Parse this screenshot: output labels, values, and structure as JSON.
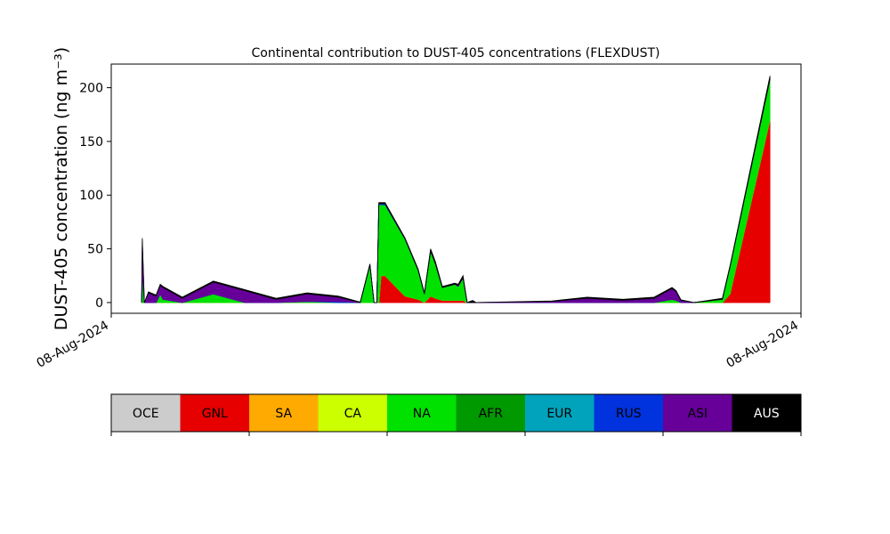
{
  "chart_data": {
    "type": "stacked_area",
    "title": "Continental contribution to DUST-405 concentrations (FLEXDUST)",
    "ylabel": "DUST-405 concentration (ng m⁻³)",
    "x": [
      4.4,
      4.5,
      4.8,
      5.4,
      6.5,
      7.1,
      7.5,
      10.3,
      14.8,
      19.4,
      23.9,
      28.4,
      32.9,
      36.1,
      37.5,
      38.1,
      38.5,
      38.8,
      39.1,
      39.7,
      42.6,
      44.5,
      45.4,
      46.3,
      47.0,
      48.0,
      49.8,
      50.3,
      51.0,
      51.6,
      52.4,
      52.9,
      63.9,
      69.0,
      74.2,
      78.7,
      81.3,
      81.9,
      82.6,
      84.5,
      88.6,
      89.7,
      95.5
    ],
    "xlim": [
      0,
      100
    ],
    "xticks": [
      {
        "value": 0,
        "label": "08-Aug-2024"
      },
      {
        "value": 100,
        "label": "08-Aug-2024"
      }
    ],
    "ylim": [
      -10,
      222
    ],
    "yticks": [
      0,
      50,
      100,
      150,
      200
    ],
    "grid": false,
    "series": [
      {
        "name": "OCE",
        "color": "#cccccc",
        "values": [
          0,
          0,
          0,
          0,
          0,
          0,
          0,
          0,
          0,
          0,
          0,
          0,
          0,
          0,
          0,
          0,
          0,
          0,
          0,
          0,
          0,
          0,
          0,
          0,
          0,
          0,
          0,
          0,
          0,
          0,
          0,
          0,
          0,
          0,
          0,
          0,
          0,
          0,
          0,
          0,
          0,
          0,
          0
        ]
      },
      {
        "name": "GNL",
        "color": "#e60000",
        "values": [
          0,
          0,
          0,
          0,
          0,
          0,
          0,
          0,
          0,
          0,
          0,
          0,
          0,
          0,
          0,
          0,
          0,
          0,
          25,
          25,
          6,
          3,
          0,
          6,
          4,
          2,
          2,
          2,
          2,
          0,
          0,
          0,
          0,
          0,
          0,
          0,
          0,
          0,
          0,
          0,
          0,
          8,
          170
        ]
      },
      {
        "name": "SA",
        "color": "#ffaa00",
        "values": [
          0,
          0,
          0,
          0,
          0,
          0,
          0,
          0,
          0,
          0,
          0,
          0,
          0,
          0,
          0,
          0,
          0,
          0,
          0,
          0,
          0,
          0,
          0,
          0,
          0,
          0,
          0,
          0,
          0,
          0,
          0,
          0,
          0,
          0,
          0,
          0,
          0,
          0,
          0,
          0,
          0,
          0,
          0
        ]
      },
      {
        "name": "CA",
        "color": "#ccff00",
        "values": [
          0,
          0,
          0,
          0,
          0,
          0,
          0,
          0,
          0,
          0,
          0,
          0,
          0,
          0,
          0,
          0,
          0,
          0,
          0,
          0,
          0,
          0,
          0,
          0,
          0,
          0,
          0,
          0,
          0,
          0,
          0,
          0,
          0,
          0,
          0,
          0,
          0,
          0,
          0,
          0,
          0,
          0,
          0
        ]
      },
      {
        "name": "NA",
        "color": "#00e100",
        "values": [
          0,
          30,
          0,
          0,
          0,
          8,
          3,
          0,
          8,
          0,
          0,
          1,
          0,
          0,
          35,
          0,
          0,
          92,
          66,
          66,
          53,
          27,
          8,
          42,
          32,
          12,
          15,
          13,
          21,
          0,
          0,
          0,
          0,
          0,
          0,
          0,
          3,
          2,
          0,
          0,
          3,
          25,
          38
        ]
      },
      {
        "name": "AFR",
        "color": "#009900",
        "values": [
          0,
          0,
          0,
          0,
          0,
          0,
          0,
          0,
          0,
          0,
          0,
          0,
          0,
          0,
          0,
          0,
          0,
          0,
          0,
          0,
          0,
          0,
          0,
          0,
          0,
          0,
          0,
          0,
          0,
          0,
          0,
          0,
          0,
          0,
          0,
          0,
          0,
          0,
          0,
          0,
          0,
          0,
          0
        ]
      },
      {
        "name": "EUR",
        "color": "#00a3bb",
        "values": [
          0,
          0,
          0,
          0,
          0,
          0,
          0,
          0,
          0,
          0,
          0,
          0,
          0,
          0,
          0,
          0,
          0,
          0,
          0,
          0,
          0,
          0,
          0,
          0,
          0,
          0,
          0,
          0,
          0,
          0,
          0,
          0,
          0,
          0,
          0,
          0,
          0,
          0,
          0,
          0,
          0,
          0,
          0
        ]
      },
      {
        "name": "RUS",
        "color": "#0033dd",
        "values": [
          0,
          0,
          0,
          0,
          0,
          0,
          0,
          0,
          0,
          0,
          0,
          0,
          1,
          0,
          0,
          0,
          0,
          0,
          1,
          1,
          0,
          0,
          0,
          0,
          0,
          0,
          0,
          0,
          0,
          0,
          0,
          0,
          0,
          0,
          0,
          0,
          0,
          0,
          0,
          0,
          0,
          0,
          0
        ]
      },
      {
        "name": "ASI",
        "color": "#660099",
        "values": [
          0,
          28,
          0,
          9,
          6,
          8,
          11,
          4,
          11,
          11,
          3,
          7,
          4,
          0,
          0,
          0,
          0,
          0,
          0,
          0,
          0,
          0,
          0,
          0,
          0,
          0,
          0,
          1,
          0,
          0,
          0,
          0,
          1,
          4,
          2,
          4,
          10,
          8,
          2,
          0,
          0,
          0,
          0
        ]
      },
      {
        "name": "AUS",
        "color": "#000000",
        "values": [
          0,
          2,
          0,
          1,
          1,
          1,
          1,
          1,
          1,
          1,
          1,
          1,
          1,
          0.5,
          1,
          0,
          0,
          1,
          1,
          1,
          1,
          1,
          1,
          2,
          2,
          1,
          1,
          1,
          2,
          0,
          2,
          0,
          0.5,
          1,
          1,
          1,
          1,
          1,
          0.5,
          0,
          1,
          1,
          3
        ]
      }
    ]
  }
}
